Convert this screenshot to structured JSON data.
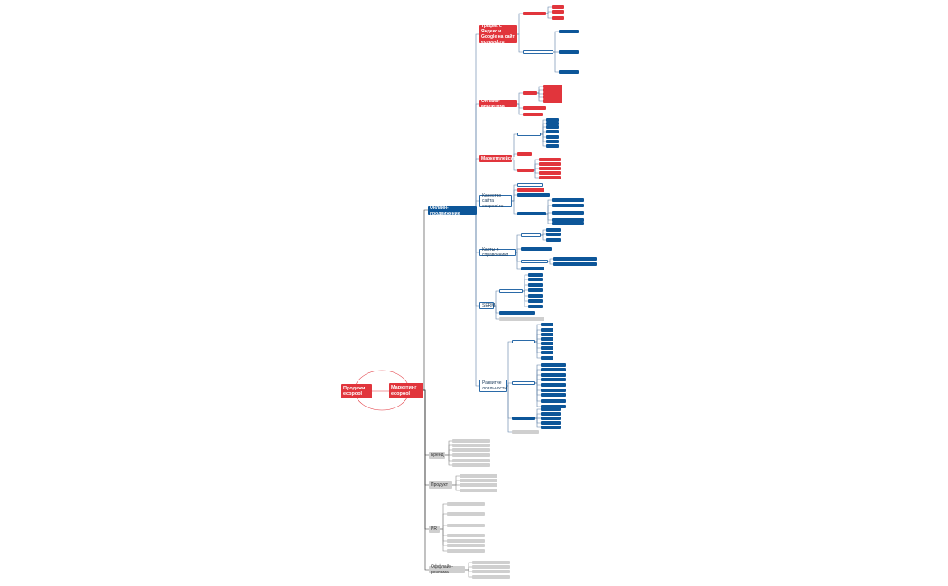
{
  "sales": "Продажи ecopool",
  "marketing": "Маркетинг ecopool",
  "online": {
    "label": "Онлайн-продвижение",
    "branches": [
      "Трафик с Яндекс и Google на сайт ecopool.ru",
      "Онлайн-аналитика",
      "Маркетплейсы",
      "Качество сайта ecopool.ru",
      "Карты и справочники",
      "SERM",
      "Развитие лояльности"
    ]
  },
  "offline": [
    "Бренд",
    "Продукт",
    "PR",
    "Оффлайн-реклама"
  ]
}
